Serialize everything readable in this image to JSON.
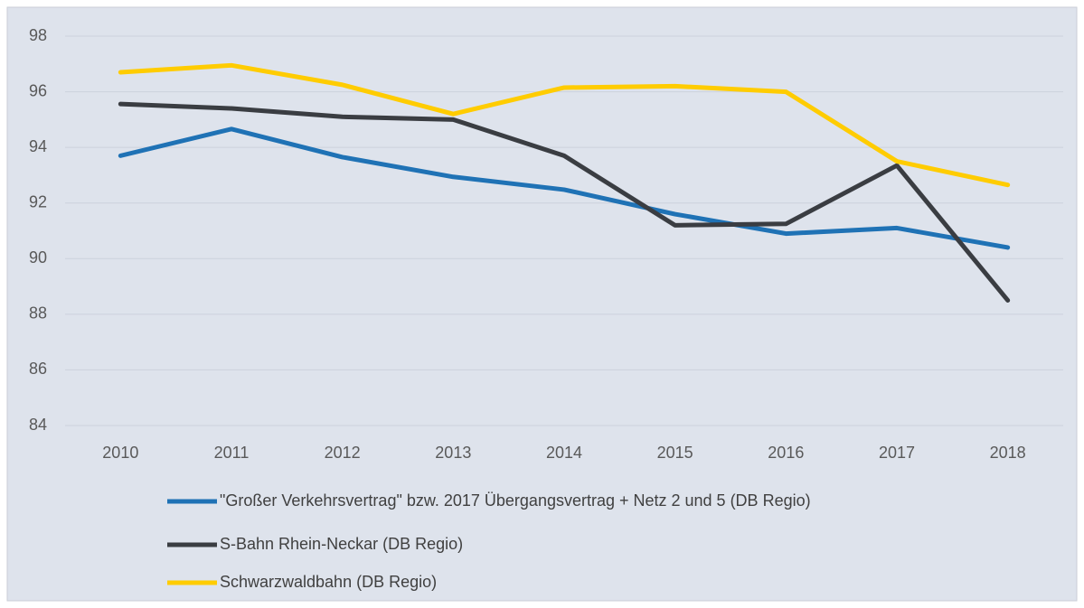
{
  "chart_data": {
    "type": "line",
    "categories": [
      "2010",
      "2011",
      "2012",
      "2013",
      "2014",
      "2015",
      "2016",
      "2017",
      "2018"
    ],
    "series": [
      {
        "name": "\"Großer Verkehrsvertrag\" bzw. 2017 Übergangsvertrag + Netz 2 und 5 (DB Regio)",
        "color": "#1f72b5",
        "values": [
          93.7,
          94.66,
          93.65,
          92.94,
          92.48,
          91.6,
          90.9,
          91.1,
          90.4
        ]
      },
      {
        "name": "S-Bahn Rhein-Neckar (DB Regio)",
        "color": "#3a3d42",
        "values": [
          95.56,
          95.4,
          95.1,
          95.0,
          93.7,
          91.2,
          91.25,
          93.35,
          88.5
        ]
      },
      {
        "name": "Schwarzwaldbahn (DB Regio)",
        "color": "#ffcc00",
        "values": [
          96.7,
          96.95,
          96.25,
          95.2,
          96.15,
          96.2,
          96.0,
          93.5,
          92.65
        ]
      }
    ],
    "ylim": [
      84,
      98
    ],
    "yticks": [
      84,
      86,
      88,
      90,
      92,
      94,
      96,
      98
    ],
    "grid": true,
    "legend": "bottom"
  }
}
